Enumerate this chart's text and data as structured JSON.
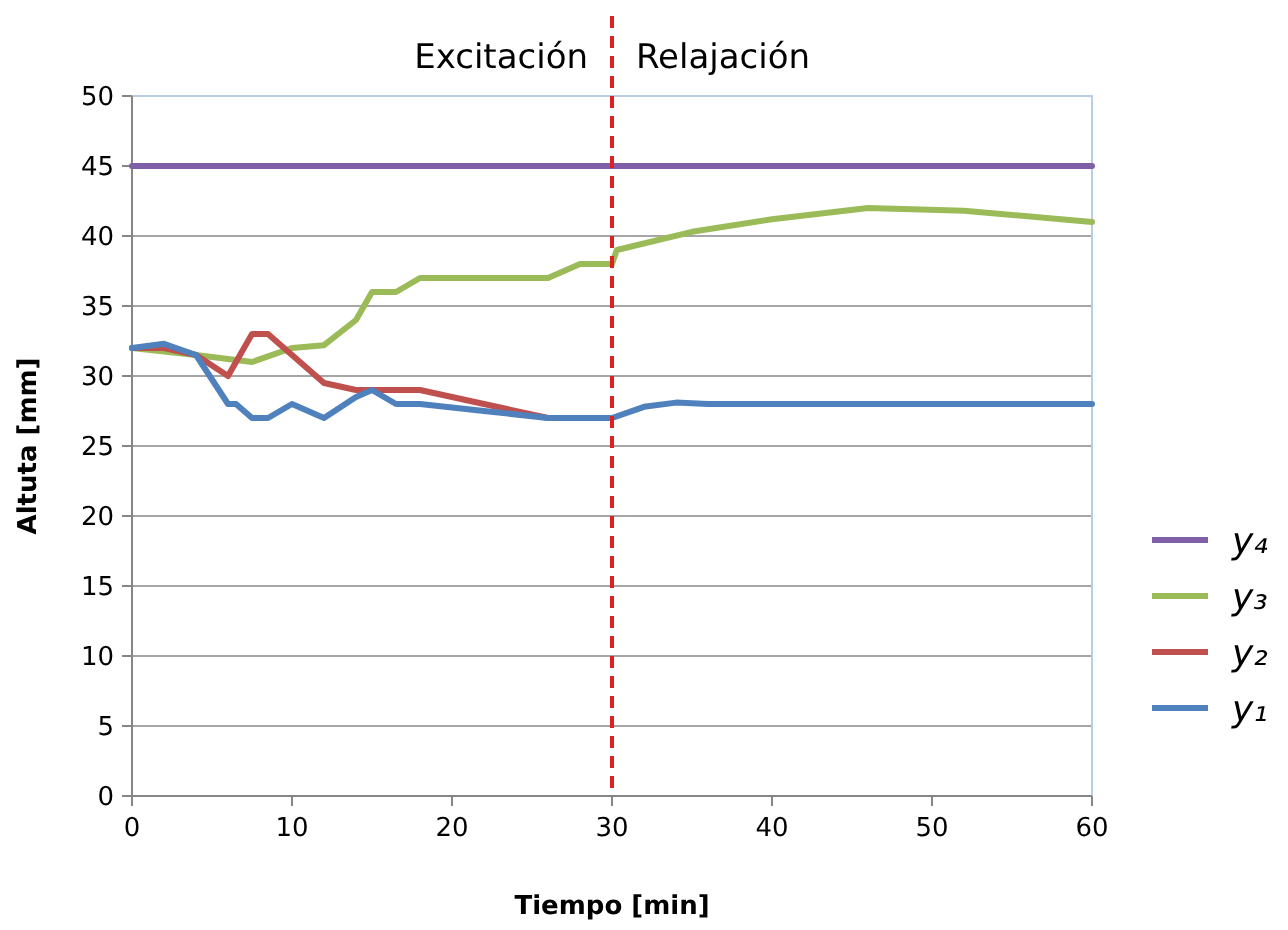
{
  "chart_data": {
    "type": "line",
    "xlabel": "Tiempo [min]",
    "ylabel": "Altuta [mm]",
    "annotations": [
      "Excitación",
      "Relajación"
    ],
    "xlim": [
      0,
      60
    ],
    "xticks": [
      0,
      10,
      20,
      30,
      40,
      50,
      60
    ],
    "ylim": [
      0,
      50
    ],
    "yticks": [
      0,
      5,
      10,
      15,
      20,
      25,
      30,
      35,
      40,
      45,
      50
    ],
    "grid": "y",
    "legend": "right",
    "line_style": "solid",
    "marker": "none",
    "ref_lines": [
      {
        "axis": "x",
        "value": 30,
        "color": "#e02020",
        "line_style": "dashed"
      }
    ],
    "series": [
      {
        "name": "y₄",
        "color": "#7f5fa8",
        "x": [
          0,
          60
        ],
        "values": [
          45,
          45
        ]
      },
      {
        "name": "y₃",
        "color": "#9bbb59",
        "x": [
          0,
          4,
          7.5,
          10,
          12,
          14,
          15,
          16.5,
          18,
          20,
          26,
          28,
          30,
          30.3,
          35,
          40,
          46,
          52,
          60
        ],
        "values": [
          32,
          31.5,
          31,
          32,
          32.2,
          34,
          36,
          36,
          37,
          37,
          37,
          38,
          38,
          39,
          40.3,
          41.2,
          42,
          41.8,
          41
        ]
      },
      {
        "name": "y₂",
        "color": "#c0504d",
        "x": [
          0,
          2,
          4,
          6,
          7.5,
          8.5,
          10,
          12,
          14,
          18,
          22,
          26
        ],
        "values": [
          32,
          32,
          31.5,
          30,
          33,
          33,
          31.5,
          29.5,
          29,
          29,
          28,
          27
        ]
      },
      {
        "name": "y₁",
        "color": "#4f81bd",
        "x": [
          0,
          2,
          4,
          6,
          6.5,
          7.5,
          8.5,
          10,
          12,
          14,
          15,
          16.5,
          18,
          22,
          26,
          30,
          32,
          34,
          36,
          60
        ],
        "values": [
          32,
          32.3,
          31.5,
          28,
          28,
          27,
          27,
          28,
          27,
          28.5,
          29,
          28,
          28,
          27.5,
          27,
          27,
          27.8,
          28.1,
          28,
          28
        ]
      }
    ]
  }
}
